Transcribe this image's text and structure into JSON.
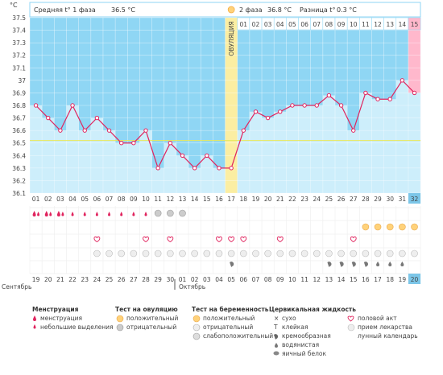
{
  "header": {
    "unit": "°C",
    "phase1_label": "Средняя t° 1 фаза",
    "phase1_value": "36.5 °C",
    "phase2_label": "2 фаза",
    "phase2_value": "36.8 °C",
    "diff_label": "Разница t°",
    "diff_value": "0.3 °C"
  },
  "ovulation_label": "ОВУЛЯЦИЯ",
  "months": {
    "first": "Сентябрь",
    "second": "Октябрь"
  },
  "colors": {
    "plot_bg": "#8fd6f4",
    "col_fill": "#cdeefb",
    "line": "#e0245e",
    "ovulation": "#fbeea2",
    "today": "#ffb8cc",
    "day_hl": "#7cc6e8",
    "cover_line": "#e8e85a",
    "red_text": "#e0245e"
  },
  "chart_data": {
    "type": "line",
    "y_unit": "°C",
    "ylim": [
      36.1,
      37.5
    ],
    "y_ticks": [
      "36.1",
      "36.2",
      "36.3",
      "36.4",
      "36.5",
      "36.6",
      "36.7",
      "36.8",
      "36.9",
      "37",
      "37.1",
      "37.2",
      "37.3",
      "37.4",
      "37.5"
    ],
    "cycle_days": [
      "01",
      "02",
      "03",
      "04",
      "05",
      "06",
      "07",
      "08",
      "09",
      "10",
      "11",
      "12",
      "13",
      "14",
      "15",
      "16",
      "17",
      "18",
      "19",
      "20",
      "21",
      "22",
      "23",
      "24",
      "25",
      "26",
      "27",
      "28",
      "29",
      "30",
      "31",
      "32"
    ],
    "phase2_days": [
      "01",
      "02",
      "03",
      "04",
      "05",
      "06",
      "07",
      "08",
      "09",
      "10",
      "11",
      "12",
      "13",
      "14",
      "15"
    ],
    "temperatures": [
      36.8,
      36.7,
      36.6,
      36.8,
      36.6,
      36.7,
      36.6,
      36.5,
      36.5,
      36.6,
      36.3,
      36.5,
      36.4,
      36.3,
      36.4,
      36.3,
      36.3,
      36.6,
      36.75,
      36.7,
      36.75,
      36.8,
      36.8,
      36.8,
      36.88,
      36.8,
      36.6,
      36.9,
      36.85,
      36.85,
      37.0,
      36.9
    ],
    "coverline": 36.52,
    "ovulation_day": 17,
    "today_day": 32,
    "calendar_dates": [
      "19",
      "20",
      "21",
      "22",
      "23",
      "24",
      "25",
      "26",
      "27",
      "28",
      "29",
      "30",
      "01",
      "02",
      "03",
      "04",
      "05",
      "06",
      "07",
      "08",
      "09",
      "10",
      "11",
      "12",
      "13",
      "14",
      "15",
      "16",
      "17",
      "18",
      "19",
      "20"
    ],
    "red_date_indices": [
      5,
      6,
      12,
      13,
      14,
      17,
      18,
      26,
      27
    ],
    "menstruation": [
      "drop",
      "drop",
      "drop",
      "small",
      "small",
      "small",
      "small",
      "small",
      "small",
      "small",
      "",
      "",
      "",
      "",
      "",
      "",
      "",
      "",
      "",
      "",
      "",
      "",
      "",
      "",
      "",
      "",
      "",
      "",
      "",
      "",
      "",
      ""
    ],
    "ovulation_test": [
      "",
      "",
      "",
      "",
      "",
      "",
      "",
      "",
      "",
      "",
      "neg",
      "neg",
      "neg",
      "",
      "",
      "",
      "",
      "",
      "",
      "",
      "",
      "",
      "",
      "",
      "",
      "",
      "",
      "pos",
      "pos",
      "pos",
      "pos",
      "pos"
    ],
    "intercourse": [
      false,
      false,
      false,
      false,
      false,
      true,
      false,
      false,
      false,
      true,
      false,
      true,
      false,
      false,
      false,
      true,
      true,
      true,
      false,
      false,
      true,
      false,
      false,
      false,
      false,
      false,
      true,
      false,
      false,
      false,
      false,
      false
    ],
    "medication": [
      false,
      false,
      false,
      false,
      false,
      true,
      true,
      true,
      true,
      true,
      true,
      true,
      true,
      true,
      true,
      true,
      true,
      true,
      true,
      true,
      true,
      true,
      true,
      true,
      true,
      true,
      true,
      true,
      true,
      true,
      true,
      true
    ],
    "fluid": [
      "",
      "",
      "",
      "",
      "",
      "",
      "",
      "",
      "",
      "",
      "",
      "",
      "",
      "",
      "",
      "",
      "",
      "",
      "",
      "",
      "",
      "",
      "",
      "",
      "cream",
      "cream",
      "cream",
      "cream",
      "water",
      "water",
      "water",
      ""
    ],
    "fluid_extra": {
      "day": 16,
      "type": "cream"
    }
  },
  "legend": {
    "menstruation": {
      "title": "Менструация",
      "items": [
        "менструация",
        "небольшие выделения"
      ]
    },
    "ovulation_test": {
      "title": "Тест на овуляцию",
      "items": [
        "положительный",
        "отрицательный"
      ]
    },
    "pregnancy_test": {
      "title": "Тест на беременность",
      "items": [
        "положительный",
        "отрицательный",
        "слабоположительный"
      ]
    },
    "cervical_fluid": {
      "title": "Цервикальная жидкость",
      "items": [
        "сухо",
        "клейкая",
        "кремообразная",
        "водянистая",
        "яичный белок"
      ]
    },
    "other": {
      "items": [
        "половой акт",
        "прием лекарства",
        "лунный календарь"
      ]
    }
  }
}
